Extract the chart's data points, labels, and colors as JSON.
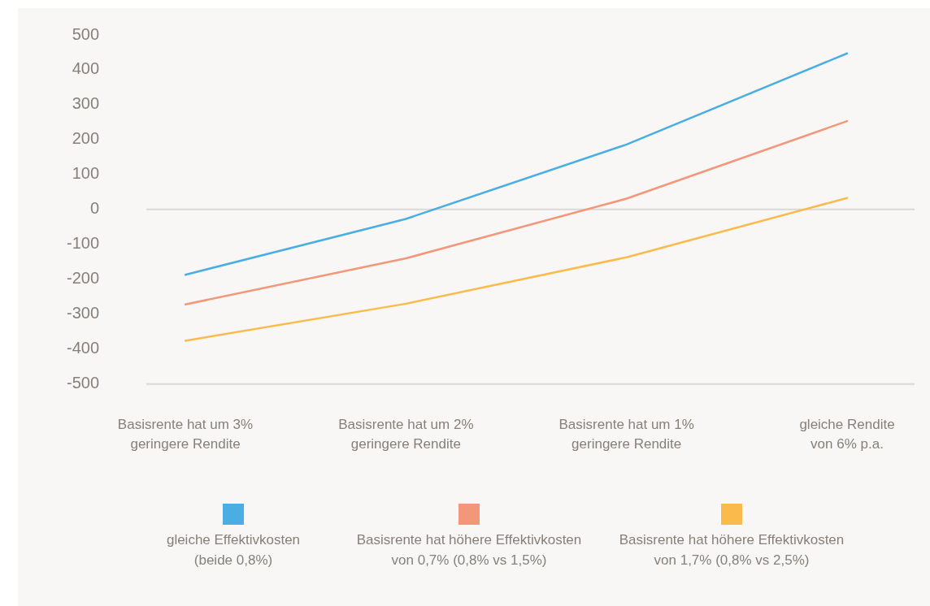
{
  "chart_data": {
    "type": "line",
    "categories": [
      "Basisrente hat um 3% geringere Rendite",
      "Basisrente hat um 2% geringere Rendite",
      "Basisrente hat um 1% geringere Rendite",
      "gleiche Rendite von 6% p.a."
    ],
    "series": [
      {
        "name": "gleiche Effektivkosten (beide 0,8%)",
        "color": "#4aaee3",
        "values": [
          -187,
          -27,
          186,
          447
        ]
      },
      {
        "name": "Basisrente hat höhere Effektivkosten von 0,7% (0,8% vs 1,5%)",
        "color": "#f2977a",
        "values": [
          -272,
          -140,
          31,
          253
        ]
      },
      {
        "name": "Basisrente hat höhere Effektivkosten von 1,7% (0,8% vs 2,5%)",
        "color": "#fbbb4c",
        "values": [
          -376,
          -270,
          -137,
          33
        ]
      }
    ],
    "ylim": [
      -500,
      500
    ],
    "yticks": [
      -500,
      -400,
      -300,
      -200,
      -100,
      0,
      100,
      200,
      300,
      400,
      500
    ],
    "grid": false,
    "legend": "bottom",
    "marker": "none",
    "line_style": "solid",
    "ref_lines": [
      {
        "axis": "y",
        "value": 0,
        "color": "#d9d9d7"
      }
    ]
  }
}
